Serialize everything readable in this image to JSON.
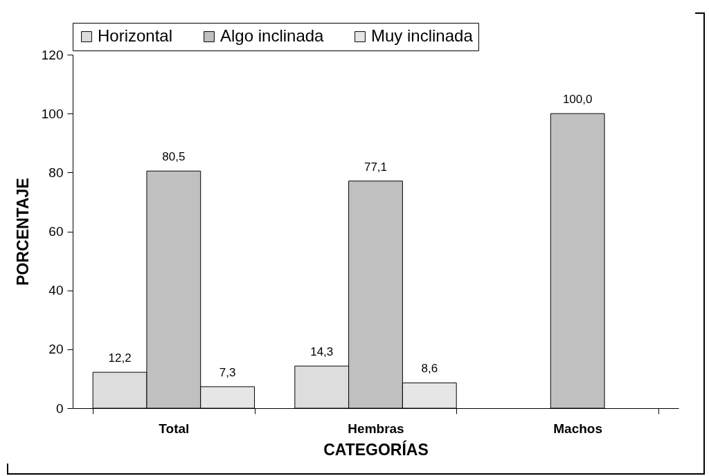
{
  "chart_data": {
    "type": "bar",
    "xlabel": "CATEGORÍAS",
    "ylabel": "PORCENTAJE",
    "categories": [
      "Total",
      "Hembras",
      "Machos"
    ],
    "series": [
      {
        "name": "Horizontal",
        "color": "#dddddd",
        "values": [
          12.2,
          14.3,
          null
        ],
        "value_labels": [
          "12,2",
          "14,3",
          null
        ]
      },
      {
        "name": "Algo inclinada",
        "color": "#c0c0c0",
        "values": [
          80.5,
          77.1,
          100.0
        ],
        "value_labels": [
          "80,5",
          "77,1",
          "100,0"
        ]
      },
      {
        "name": "Muy inclinada",
        "color": "#e6e6e6",
        "values": [
          7.3,
          8.6,
          null
        ],
        "value_labels": [
          "7,3",
          "8,6",
          null
        ]
      }
    ],
    "ylim": [
      0,
      120
    ],
    "yticks": [
      0,
      20,
      40,
      60,
      80,
      100,
      120
    ],
    "grid": false,
    "legend": "top"
  }
}
